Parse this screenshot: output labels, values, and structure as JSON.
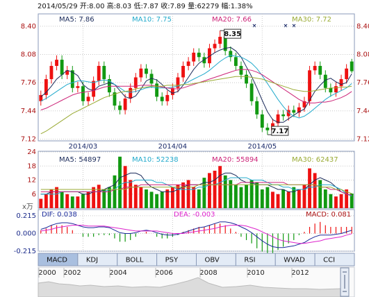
{
  "header": "2014/05/29 开:8.00 高:8.03 低:7.87 收:7.89 量:62279 幅:1.38%",
  "tabs": [
    "MACD",
    "KDJ",
    "BOLL",
    "PSY",
    "OBV",
    "RSI",
    "WVAD",
    "CCI"
  ],
  "selected_tab": "MACD",
  "timeline": [
    "2000",
    "2002",
    "2004",
    "2006",
    "2008",
    "2010",
    "2012"
  ],
  "chart_data": [
    {
      "type": "candlestick",
      "categories": [
        null,
        null,
        null,
        null,
        null,
        null,
        null,
        null,
        "2014/03",
        null,
        null,
        null,
        null,
        null,
        null,
        null,
        null,
        null,
        null,
        null,
        null,
        null,
        null,
        null,
        null,
        "2014/04",
        null,
        null,
        null,
        null,
        null,
        null,
        null,
        null,
        null,
        null,
        null,
        null,
        null,
        null,
        null,
        null,
        "2014/05",
        null,
        null,
        null,
        null,
        null,
        null,
        null,
        null,
        null,
        null,
        null,
        null,
        null,
        null,
        null,
        null,
        null
      ],
      "open": [
        7.55,
        7.62,
        7.8,
        7.95,
        8.02,
        7.85,
        7.9,
        7.7,
        7.72,
        7.55,
        7.6,
        7.78,
        7.95,
        7.8,
        7.65,
        7.5,
        7.45,
        7.58,
        7.7,
        7.82,
        7.92,
        7.86,
        7.75,
        7.6,
        7.55,
        7.62,
        7.7,
        7.82,
        7.95,
        8.0,
        8.1,
        8.05,
        7.98,
        8.15,
        8.2,
        8.28,
        8.12,
        8.05,
        7.95,
        7.85,
        7.75,
        7.55,
        7.4,
        7.25,
        7.22,
        7.3,
        7.4,
        7.38,
        7.45,
        7.42,
        7.48,
        7.55,
        7.9,
        7.95,
        7.85,
        7.7,
        7.65,
        7.72,
        7.8,
        8.0
      ],
      "high": [
        7.67,
        7.85,
        8.0,
        8.07,
        8.07,
        7.95,
        7.95,
        7.77,
        7.77,
        7.65,
        7.83,
        8.0,
        8.0,
        7.85,
        7.7,
        7.55,
        7.63,
        7.75,
        7.87,
        7.97,
        7.97,
        7.91,
        7.8,
        7.65,
        7.67,
        7.75,
        7.87,
        8.0,
        8.05,
        8.15,
        8.15,
        8.1,
        8.2,
        8.25,
        8.35,
        8.33,
        8.17,
        8.1,
        8.0,
        7.9,
        7.8,
        7.6,
        7.45,
        7.3,
        7.35,
        7.45,
        7.45,
        7.5,
        7.5,
        7.53,
        7.6,
        7.95,
        8.0,
        8.0,
        7.9,
        7.75,
        7.77,
        7.85,
        7.97,
        8.03
      ],
      "low": [
        7.5,
        7.57,
        7.75,
        7.9,
        7.8,
        7.8,
        7.65,
        7.65,
        7.5,
        7.5,
        7.55,
        7.73,
        7.75,
        7.6,
        7.45,
        7.4,
        7.4,
        7.53,
        7.65,
        7.77,
        7.81,
        7.7,
        7.55,
        7.5,
        7.5,
        7.57,
        7.65,
        7.77,
        7.9,
        7.95,
        8.0,
        7.93,
        7.93,
        8.1,
        8.15,
        8.07,
        8.0,
        7.9,
        7.8,
        7.7,
        7.5,
        7.35,
        7.2,
        7.17,
        7.19,
        7.25,
        7.33,
        7.33,
        7.37,
        7.37,
        7.43,
        7.5,
        7.85,
        7.8,
        7.65,
        7.6,
        7.6,
        7.67,
        7.75,
        7.87
      ],
      "close": [
        7.62,
        7.8,
        7.95,
        8.02,
        7.85,
        7.9,
        7.7,
        7.72,
        7.55,
        7.6,
        7.78,
        7.95,
        7.8,
        7.65,
        7.5,
        7.45,
        7.58,
        7.7,
        7.82,
        7.92,
        7.86,
        7.75,
        7.6,
        7.55,
        7.62,
        7.7,
        7.82,
        7.95,
        8.0,
        8.1,
        8.05,
        7.98,
        8.15,
        8.2,
        8.28,
        8.12,
        8.05,
        7.95,
        7.85,
        7.75,
        7.55,
        7.4,
        7.25,
        7.22,
        7.3,
        7.4,
        7.38,
        7.45,
        7.42,
        7.48,
        7.55,
        7.9,
        7.95,
        7.85,
        7.7,
        7.65,
        7.72,
        7.8,
        7.92,
        7.89
      ],
      "up_color": "#ee1111",
      "down_color": "#119911",
      "ylim": [
        7.1,
        8.54
      ],
      "yticks": [
        {
          "value": 8.4,
          "label": "8.40"
        },
        {
          "value": 8.08,
          "label": "8.08"
        },
        {
          "value": 7.76,
          "label": "7.76"
        },
        {
          "value": 7.44,
          "label": "7.44"
        },
        {
          "value": 7.12,
          "label": "7.12"
        }
      ],
      "grid": true,
      "annotations": [
        {
          "value": 8.35,
          "label": "8.35"
        },
        {
          "value": 7.17,
          "label": "7.17"
        }
      ],
      "series": [
        {
          "name": "MA5: 7.86",
          "color": "#1a2a5a",
          "values": [
            7.6,
            7.65,
            7.72,
            7.8,
            7.85,
            7.9,
            7.88,
            7.84,
            7.74,
            7.69,
            7.67,
            7.72,
            7.74,
            7.76,
            7.74,
            7.67,
            7.6,
            7.58,
            7.61,
            7.69,
            7.78,
            7.81,
            7.79,
            7.74,
            7.68,
            7.64,
            7.66,
            7.73,
            7.82,
            7.91,
            7.98,
            8.02,
            8.06,
            8.1,
            8.13,
            8.15,
            8.16,
            8.12,
            8.05,
            7.94,
            7.83,
            7.7,
            7.56,
            7.43,
            7.34,
            7.31,
            7.31,
            7.35,
            7.39,
            7.43,
            7.46,
            7.56,
            7.66,
            7.73,
            7.79,
            7.81,
            7.77,
            7.74,
            7.76,
            7.86
          ]
        },
        {
          "name": "MA10: 7.75",
          "color": "#22aacc",
          "values": [
            7.55,
            7.58,
            7.62,
            7.66,
            7.7,
            7.74,
            7.76,
            7.78,
            7.78,
            7.77,
            7.76,
            7.78,
            7.79,
            7.78,
            7.74,
            7.7,
            7.66,
            7.65,
            7.66,
            7.68,
            7.7,
            7.71,
            7.7,
            7.7,
            7.7,
            7.71,
            7.72,
            7.74,
            7.77,
            7.8,
            7.83,
            7.86,
            7.9,
            7.95,
            8.0,
            8.04,
            8.07,
            8.06,
            8.05,
            8.02,
            7.98,
            7.92,
            7.84,
            7.75,
            7.66,
            7.57,
            7.49,
            7.42,
            7.38,
            7.36,
            7.38,
            7.42,
            7.47,
            7.52,
            7.57,
            7.61,
            7.64,
            7.67,
            7.7,
            7.75
          ]
        },
        {
          "name": "MA20: 7.66",
          "color": "#cc2277",
          "values": [
            7.45,
            7.47,
            7.5,
            7.53,
            7.56,
            7.59,
            7.62,
            7.64,
            7.65,
            7.66,
            7.67,
            7.69,
            7.71,
            7.72,
            7.72,
            7.72,
            7.72,
            7.72,
            7.72,
            7.73,
            7.73,
            7.73,
            7.72,
            7.71,
            7.7,
            7.69,
            7.69,
            7.7,
            7.72,
            7.74,
            7.76,
            7.78,
            7.8,
            7.82,
            7.84,
            7.86,
            7.88,
            7.9,
            7.91,
            7.91,
            7.9,
            7.88,
            7.85,
            7.81,
            7.77,
            7.73,
            7.69,
            7.65,
            7.61,
            7.57,
            7.54,
            7.53,
            7.53,
            7.54,
            7.54,
            7.55,
            7.57,
            7.59,
            7.62,
            7.66
          ]
        },
        {
          "name": "MA30: 7.72",
          "color": "#99aa33",
          "values": [
            7.18,
            7.21,
            7.25,
            7.29,
            7.33,
            7.37,
            7.41,
            7.44,
            7.47,
            7.5,
            7.53,
            7.56,
            7.59,
            7.61,
            7.63,
            7.65,
            7.66,
            7.67,
            7.69,
            7.7,
            7.71,
            7.72,
            7.72,
            7.72,
            7.73,
            7.73,
            7.73,
            7.74,
            7.74,
            7.75,
            7.76,
            7.77,
            7.78,
            7.79,
            7.8,
            7.81,
            7.82,
            7.83,
            7.83,
            7.83,
            7.82,
            7.81,
            7.8,
            7.78,
            7.76,
            7.74,
            7.72,
            7.7,
            7.68,
            7.67,
            7.66,
            7.66,
            7.67,
            7.68,
            7.69,
            7.7,
            7.7,
            7.71,
            7.71,
            7.72
          ]
        }
      ]
    },
    {
      "type": "bar",
      "values": [
        4,
        6,
        8,
        9,
        7,
        6,
        5,
        5,
        6,
        7,
        9,
        10,
        8,
        9,
        14,
        22,
        18,
        12,
        10,
        9,
        8,
        7,
        6,
        7,
        8,
        9,
        10,
        11,
        12,
        9,
        8,
        13,
        15,
        16,
        18,
        14,
        12,
        10,
        9,
        10,
        12,
        11,
        8,
        9,
        7,
        6,
        8,
        7,
        9,
        8,
        10,
        17,
        15,
        12,
        8,
        6,
        5,
        6,
        8,
        6.2279
      ],
      "ylim": [
        0,
        24.3
      ],
      "yticks": [
        24,
        18,
        12,
        6
      ],
      "ylabel": "x万",
      "grid": true,
      "series": [
        {
          "name": "MA5: 54897",
          "color": "#1a2a5a",
          "values": [
            6,
            6,
            7,
            7,
            7,
            7,
            7,
            7,
            6,
            6,
            7,
            7,
            8,
            9,
            10,
            13,
            14,
            15,
            15,
            14,
            11,
            9,
            8,
            7,
            7,
            7,
            8,
            9,
            10,
            10,
            10,
            11,
            11,
            12,
            14,
            15,
            15,
            14,
            12,
            11,
            11,
            10,
            10,
            10,
            9,
            8,
            8,
            7,
            7,
            8,
            8,
            10,
            12,
            13,
            12,
            11,
            9,
            7,
            6,
            5.4897
          ]
        },
        {
          "name": "MA10: 52238",
          "color": "#22aacc",
          "values": [
            6,
            6,
            6,
            6,
            7,
            7,
            7,
            7,
            7,
            7,
            7,
            7,
            7,
            8,
            8,
            10,
            11,
            11,
            12,
            12,
            12,
            12,
            11,
            11,
            10,
            9,
            8,
            8,
            8,
            8,
            9,
            9,
            10,
            10,
            11,
            12,
            13,
            13,
            13,
            13,
            12,
            12,
            12,
            11,
            10,
            10,
            9,
            9,
            8,
            8,
            8,
            9,
            9,
            10,
            10,
            10,
            9,
            8,
            6,
            5.2238
          ]
        },
        {
          "name": "MA20: 55894",
          "color": "#cc2277",
          "values": [
            7,
            7,
            7,
            7,
            7,
            7,
            7,
            7,
            7,
            7,
            7,
            7,
            7,
            7,
            8,
            8,
            9,
            9,
            9,
            10,
            10,
            10,
            10,
            10,
            10,
            10,
            10,
            10,
            10,
            10,
            10,
            10,
            10,
            10,
            10,
            10,
            10,
            10,
            11,
            11,
            11,
            11,
            11,
            11,
            11,
            11,
            11,
            10,
            10,
            10,
            10,
            10,
            10,
            9,
            9,
            8,
            8,
            7,
            6,
            5.5894
          ]
        },
        {
          "name": "MA30: 62437",
          "color": "#99aa33",
          "values": [
            8,
            8,
            8,
            8,
            8,
            8,
            8,
            8,
            8,
            8,
            8,
            8,
            8,
            8,
            8,
            8,
            8,
            9,
            9,
            9,
            9,
            9,
            9,
            9,
            9,
            9,
            9,
            9,
            9,
            9,
            10,
            10,
            10,
            10,
            10,
            10,
            10,
            10,
            10,
            10,
            10,
            10,
            10,
            10,
            10,
            10,
            10,
            10,
            10,
            10,
            10,
            10,
            10,
            9,
            9,
            9,
            8,
            8,
            7,
            6.2437
          ]
        }
      ]
    },
    {
      "type": "macd",
      "name": "MACD: 0.081",
      "color": "#aa1111",
      "up_color": "#ee1111",
      "down_color": "#119911",
      "values": [
        0.04,
        0.06,
        0.1,
        0.1,
        0.1,
        0.08,
        0.04,
        0,
        -0.04,
        -0.04,
        -0.04,
        -0.02,
        -0.02,
        -0.02,
        -0.06,
        -0.1,
        -0.1,
        -0.08,
        -0.04,
        0,
        0.02,
        0,
        -0.04,
        -0.06,
        -0.06,
        -0.04,
        -0.02,
        0.02,
        0.04,
        0.06,
        0.08,
        0.08,
        0.1,
        0.12,
        0.12,
        0.1,
        0.06,
        0.02,
        -0.04,
        -0.08,
        -0.12,
        -0.18,
        -0.22,
        -0.24,
        -0.24,
        -0.2,
        -0.16,
        -0.12,
        -0.08,
        -0.02,
        0.02,
        0.08,
        0.12,
        0.14,
        0.1,
        0.08,
        0.08,
        0.08,
        0.08,
        0.081
      ],
      "ylim": [
        -0.215,
        0.29
      ],
      "yticks": [
        {
          "value": 0.215,
          "label": "0.215"
        },
        {
          "value": 0,
          "label": "0.000"
        },
        {
          "value": -0.215,
          "label": "-0.215"
        }
      ],
      "grid": true,
      "series": [
        {
          "name": "DIF: 0.038",
          "color": "#1a2a9a",
          "values": [
            0.05,
            0.07,
            0.1,
            0.12,
            0.13,
            0.13,
            0.12,
            0.1,
            0.08,
            0.07,
            0.07,
            0.08,
            0.08,
            0.07,
            0.04,
            0.01,
            0.0,
            0.0,
            0.01,
            0.03,
            0.04,
            0.03,
            0.01,
            -0.01,
            -0.02,
            -0.02,
            -0.01,
            0.01,
            0.03,
            0.05,
            0.07,
            0.08,
            0.1,
            0.12,
            0.14,
            0.14,
            0.13,
            0.11,
            0.08,
            0.05,
            0.01,
            -0.04,
            -0.09,
            -0.13,
            -0.16,
            -0.17,
            -0.17,
            -0.16,
            -0.15,
            -0.13,
            -0.11,
            -0.07,
            -0.04,
            -0.02,
            -0.02,
            -0.02,
            -0.01,
            0.0,
            0.02,
            0.038
          ]
        },
        {
          "name": "DEA: -0.003",
          "color": "#dd22cc",
          "values": [
            0.03,
            0.04,
            0.05,
            0.07,
            0.08,
            0.09,
            0.1,
            0.1,
            0.1,
            0.09,
            0.09,
            0.09,
            0.09,
            0.08,
            0.07,
            0.06,
            0.05,
            0.04,
            0.03,
            0.03,
            0.03,
            0.03,
            0.03,
            0.02,
            0.01,
            0.0,
            0.0,
            0.0,
            0.01,
            0.02,
            0.03,
            0.04,
            0.05,
            0.06,
            0.08,
            0.09,
            0.1,
            0.1,
            0.1,
            0.09,
            0.07,
            0.05,
            0.02,
            -0.01,
            -0.04,
            -0.07,
            -0.09,
            -0.1,
            -0.11,
            -0.12,
            -0.12,
            -0.11,
            -0.1,
            -0.09,
            -0.07,
            -0.06,
            -0.05,
            -0.04,
            -0.02,
            -0.003
          ]
        }
      ]
    }
  ]
}
